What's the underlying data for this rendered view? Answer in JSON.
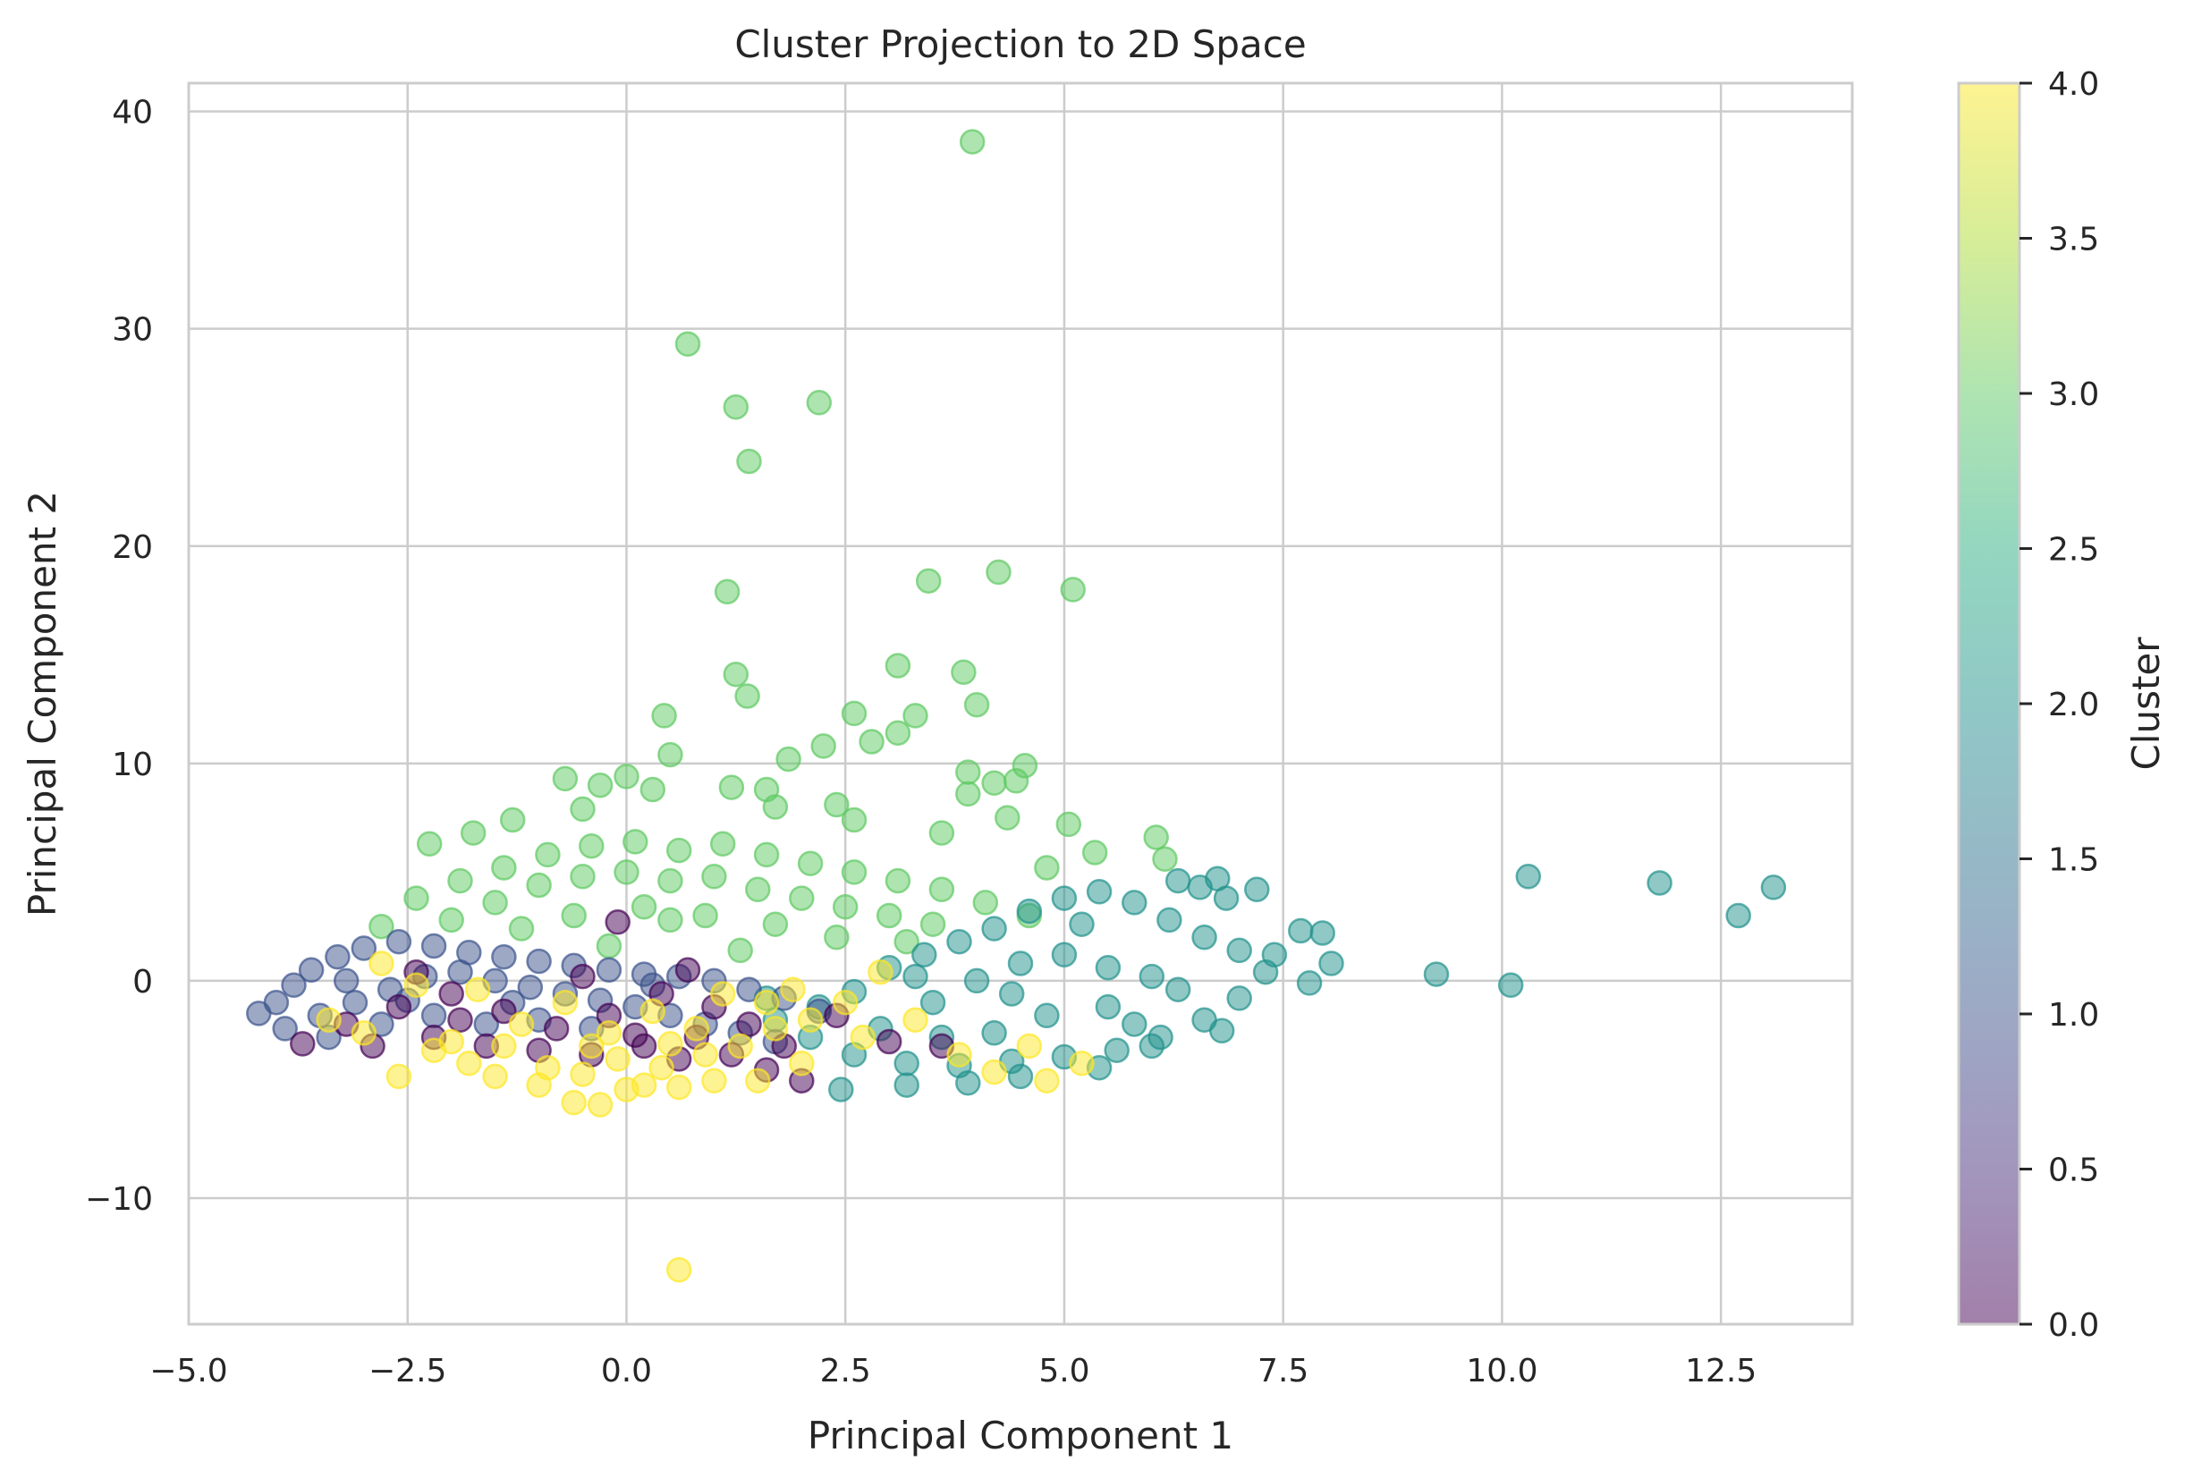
{
  "chart_data": {
    "type": "scatter",
    "title": "Cluster Projection to 2D Space",
    "xlabel": "Principal Component 1",
    "ylabel": "Principal Component 2",
    "xlim": [
      -5.0,
      14.0
    ],
    "ylim": [
      -15.8,
      41.3
    ],
    "x_ticks": [
      -5.0,
      -2.5,
      0.0,
      2.5,
      5.0,
      7.5,
      10.0,
      12.5
    ],
    "x_tick_labels": [
      "−5.0",
      "−2.5",
      "0.0",
      "2.5",
      "5.0",
      "7.5",
      "10.0",
      "12.5"
    ],
    "y_ticks": [
      -10,
      0,
      10,
      20,
      30,
      40
    ],
    "y_tick_labels": [
      "−10",
      "0",
      "10",
      "20",
      "30",
      "40"
    ],
    "grid": true,
    "colormap": "viridis",
    "colors": [
      "#440154",
      "#3b528b",
      "#21918c",
      "#5ec962",
      "#fde725"
    ],
    "marker_alpha": 0.5,
    "colorbar": {
      "label": "Cluster",
      "range": [
        0.0,
        4.0
      ],
      "ticks": [
        0.0,
        0.5,
        1.0,
        1.5,
        2.0,
        2.5,
        3.0,
        3.5,
        4.0
      ],
      "tick_labels": [
        "0.0",
        "0.5",
        "1.0",
        "1.5",
        "2.0",
        "2.5",
        "3.0",
        "3.5",
        "4.0"
      ]
    },
    "series": [
      {
        "cluster": 3,
        "points": [
          [
            3.95,
            38.6
          ],
          [
            0.7,
            29.3
          ],
          [
            1.25,
            26.4
          ],
          [
            2.2,
            26.6
          ],
          [
            1.4,
            23.9
          ],
          [
            1.15,
            17.9
          ],
          [
            3.45,
            18.4
          ],
          [
            4.25,
            18.8
          ],
          [
            5.1,
            18.0
          ],
          [
            1.25,
            14.1
          ],
          [
            1.38,
            13.1
          ],
          [
            3.1,
            14.5
          ],
          [
            3.85,
            14.2
          ],
          [
            4.0,
            12.7
          ],
          [
            0.43,
            12.2
          ],
          [
            2.6,
            12.3
          ],
          [
            3.3,
            12.2
          ],
          [
            2.25,
            10.8
          ],
          [
            2.8,
            11.0
          ],
          [
            3.1,
            11.4
          ],
          [
            0.5,
            10.4
          ],
          [
            1.85,
            10.2
          ],
          [
            3.9,
            9.6
          ],
          [
            4.55,
            9.9
          ],
          [
            1.2,
            8.9
          ],
          [
            1.6,
            8.8
          ],
          [
            2.4,
            8.1
          ],
          [
            3.9,
            8.6
          ],
          [
            4.2,
            9.1
          ],
          [
            4.45,
            9.2
          ],
          [
            5.05,
            7.2
          ],
          [
            6.05,
            6.6
          ],
          [
            6.15,
            5.6
          ],
          [
            5.35,
            5.9
          ],
          [
            4.35,
            7.5
          ],
          [
            -0.7,
            9.3
          ],
          [
            -0.3,
            9.0
          ],
          [
            0.0,
            9.4
          ],
          [
            -2.25,
            6.3
          ],
          [
            -1.75,
            6.8
          ],
          [
            -1.3,
            7.4
          ],
          [
            -0.5,
            7.9
          ],
          [
            0.3,
            8.8
          ],
          [
            1.7,
            8.0
          ],
          [
            2.6,
            7.4
          ],
          [
            3.6,
            6.8
          ],
          [
            4.8,
            5.2
          ],
          [
            -2.8,
            2.5
          ],
          [
            -2.4,
            3.8
          ],
          [
            -1.9,
            4.6
          ],
          [
            -1.4,
            5.2
          ],
          [
            -0.9,
            5.8
          ],
          [
            -0.4,
            6.2
          ],
          [
            0.1,
            6.4
          ],
          [
            0.6,
            6.0
          ],
          [
            1.1,
            6.3
          ],
          [
            1.6,
            5.8
          ],
          [
            2.1,
            5.4
          ],
          [
            2.6,
            5.0
          ],
          [
            3.1,
            4.6
          ],
          [
            3.6,
            4.2
          ],
          [
            4.1,
            3.6
          ],
          [
            4.6,
            3.0
          ],
          [
            -2.0,
            2.8
          ],
          [
            -1.5,
            3.6
          ],
          [
            -1.0,
            4.4
          ],
          [
            -0.5,
            4.8
          ],
          [
            0.0,
            5.0
          ],
          [
            0.5,
            4.6
          ],
          [
            1.0,
            4.8
          ],
          [
            1.5,
            4.2
          ],
          [
            2.0,
            3.8
          ],
          [
            2.5,
            3.4
          ],
          [
            3.0,
            3.0
          ],
          [
            3.5,
            2.6
          ],
          [
            -1.2,
            2.4
          ],
          [
            -0.6,
            3.0
          ],
          [
            0.2,
            3.4
          ],
          [
            0.9,
            3.0
          ],
          [
            1.7,
            2.6
          ],
          [
            2.4,
            2.0
          ],
          [
            3.2,
            1.8
          ],
          [
            0.5,
            2.8
          ],
          [
            -0.2,
            1.6
          ],
          [
            1.3,
            1.4
          ]
        ]
      },
      {
        "cluster": 2,
        "points": [
          [
            10.3,
            4.8
          ],
          [
            11.8,
            4.5
          ],
          [
            12.7,
            3.0
          ],
          [
            13.1,
            4.3
          ],
          [
            9.25,
            0.3
          ],
          [
            10.1,
            -0.2
          ],
          [
            7.8,
            -0.1
          ],
          [
            8.05,
            0.8
          ],
          [
            7.95,
            2.2
          ],
          [
            7.7,
            2.3
          ],
          [
            7.4,
            1.2
          ],
          [
            7.2,
            4.2
          ],
          [
            6.75,
            4.7
          ],
          [
            6.85,
            3.8
          ],
          [
            6.55,
            4.3
          ],
          [
            6.3,
            4.6
          ],
          [
            6.8,
            -2.3
          ],
          [
            2.45,
            -5.0
          ],
          [
            3.2,
            -4.8
          ],
          [
            3.9,
            -4.7
          ],
          [
            4.5,
            -4.4
          ],
          [
            5.4,
            -4.0
          ],
          [
            6.0,
            -3.0
          ],
          [
            2.6,
            -0.5
          ],
          [
            3.0,
            0.6
          ],
          [
            3.4,
            1.2
          ],
          [
            3.8,
            1.8
          ],
          [
            4.2,
            2.4
          ],
          [
            4.6,
            3.2
          ],
          [
            5.0,
            3.8
          ],
          [
            5.4,
            4.1
          ],
          [
            5.8,
            3.6
          ],
          [
            6.2,
            2.8
          ],
          [
            6.6,
            2.0
          ],
          [
            7.0,
            1.4
          ],
          [
            7.3,
            0.4
          ],
          [
            7.0,
            -0.8
          ],
          [
            6.6,
            -1.8
          ],
          [
            6.1,
            -2.6
          ],
          [
            5.6,
            -3.2
          ],
          [
            5.0,
            -3.5
          ],
          [
            4.4,
            -3.7
          ],
          [
            3.8,
            -3.9
          ],
          [
            3.2,
            -3.8
          ],
          [
            2.6,
            -3.4
          ],
          [
            2.1,
            -2.6
          ],
          [
            1.7,
            -1.8
          ],
          [
            1.6,
            -0.8
          ],
          [
            3.5,
            -1.0
          ],
          [
            4.0,
            0.0
          ],
          [
            4.5,
            0.8
          ],
          [
            5.0,
            1.2
          ],
          [
            5.5,
            0.6
          ],
          [
            6.0,
            0.2
          ],
          [
            4.8,
            -1.6
          ],
          [
            5.5,
            -1.2
          ],
          [
            4.2,
            -2.4
          ],
          [
            3.6,
            -2.6
          ],
          [
            6.3,
            -0.4
          ],
          [
            5.2,
            2.6
          ],
          [
            2.2,
            -1.2
          ],
          [
            2.9,
            -2.2
          ],
          [
            3.3,
            0.2
          ],
          [
            4.4,
            -0.6
          ],
          [
            5.8,
            -2.0
          ]
        ]
      },
      {
        "cluster": 1,
        "points": [
          [
            -4.2,
            -1.5
          ],
          [
            -4.0,
            -1.0
          ],
          [
            -3.8,
            -0.2
          ],
          [
            -3.6,
            0.5
          ],
          [
            -3.3,
            1.1
          ],
          [
            -3.0,
            1.5
          ],
          [
            -2.6,
            1.8
          ],
          [
            -2.2,
            1.6
          ],
          [
            -1.8,
            1.3
          ],
          [
            -1.4,
            1.1
          ],
          [
            -1.0,
            0.9
          ],
          [
            -0.6,
            0.7
          ],
          [
            -0.2,
            0.5
          ],
          [
            0.2,
            0.3
          ],
          [
            0.6,
            0.2
          ],
          [
            1.0,
            0.0
          ],
          [
            1.4,
            -0.4
          ],
          [
            1.8,
            -0.8
          ],
          [
            2.2,
            -1.4
          ],
          [
            -3.9,
            -2.2
          ],
          [
            -3.5,
            -1.6
          ],
          [
            -3.1,
            -1.0
          ],
          [
            -2.7,
            -0.4
          ],
          [
            -2.3,
            0.2
          ],
          [
            -1.9,
            0.4
          ],
          [
            -1.5,
            0.0
          ],
          [
            -1.1,
            -0.3
          ],
          [
            -0.7,
            -0.6
          ],
          [
            -0.3,
            -0.9
          ],
          [
            0.1,
            -1.2
          ],
          [
            0.5,
            -1.6
          ],
          [
            0.9,
            -2.0
          ],
          [
            1.3,
            -2.4
          ],
          [
            1.7,
            -2.8
          ],
          [
            -3.4,
            -2.6
          ],
          [
            -2.8,
            -2.0
          ],
          [
            -2.2,
            -1.6
          ],
          [
            -1.6,
            -2.0
          ],
          [
            -1.0,
            -1.8
          ],
          [
            -0.4,
            -2.2
          ],
          [
            -2.5,
            -0.9
          ],
          [
            -3.2,
            0.0
          ],
          [
            -1.3,
            -1.0
          ],
          [
            0.3,
            -0.2
          ]
        ]
      },
      {
        "cluster": 0,
        "points": [
          [
            -3.7,
            -2.9
          ],
          [
            -3.2,
            -2.0
          ],
          [
            -2.6,
            -1.2
          ],
          [
            -2.0,
            -0.6
          ],
          [
            -1.4,
            -1.4
          ],
          [
            -0.8,
            -2.2
          ],
          [
            -0.2,
            -1.6
          ],
          [
            0.4,
            -0.6
          ],
          [
            0.8,
            -2.6
          ],
          [
            1.2,
            -3.4
          ],
          [
            1.6,
            -4.1
          ],
          [
            2.0,
            -4.6
          ],
          [
            -2.9,
            -3.0
          ],
          [
            -2.2,
            -2.6
          ],
          [
            -1.6,
            -3.0
          ],
          [
            -1.0,
            -3.2
          ],
          [
            -0.4,
            -3.4
          ],
          [
            0.2,
            -3.0
          ],
          [
            0.6,
            -3.6
          ],
          [
            1.4,
            -2.0
          ],
          [
            -0.5,
            0.2
          ],
          [
            0.1,
            -2.5
          ],
          [
            1.0,
            -1.2
          ],
          [
            1.8,
            -3.0
          ],
          [
            3.6,
            -3.0
          ],
          [
            -1.9,
            -1.8
          ],
          [
            -2.4,
            0.4
          ],
          [
            0.7,
            0.5
          ],
          [
            -0.1,
            2.7
          ],
          [
            2.4,
            -1.6
          ],
          [
            3.0,
            -2.8
          ]
        ]
      },
      {
        "cluster": 4,
        "points": [
          [
            0.6,
            -13.3
          ],
          [
            -0.6,
            -5.6
          ],
          [
            -0.3,
            -5.7
          ],
          [
            0.0,
            -5.0
          ],
          [
            0.6,
            -4.9
          ],
          [
            1.0,
            -4.6
          ],
          [
            -1.0,
            -4.8
          ],
          [
            -2.6,
            -4.4
          ],
          [
            -1.8,
            -3.8
          ],
          [
            -2.2,
            -3.2
          ],
          [
            -1.4,
            -3.0
          ],
          [
            -0.9,
            -4.0
          ],
          [
            -0.5,
            -4.3
          ],
          [
            -0.1,
            -3.6
          ],
          [
            0.4,
            -4.0
          ],
          [
            0.9,
            -3.4
          ],
          [
            1.3,
            -3.0
          ],
          [
            1.7,
            -2.2
          ],
          [
            2.1,
            -1.8
          ],
          [
            2.5,
            -1.0
          ],
          [
            2.9,
            0.4
          ],
          [
            3.3,
            -1.8
          ],
          [
            2.0,
            -3.8
          ],
          [
            1.5,
            -4.6
          ],
          [
            4.2,
            -4.2
          ],
          [
            4.8,
            -4.6
          ],
          [
            5.2,
            -3.8
          ],
          [
            3.8,
            -3.4
          ],
          [
            -3.0,
            -2.4
          ],
          [
            -2.8,
            0.8
          ],
          [
            -2.4,
            -0.2
          ],
          [
            -1.2,
            -2.0
          ],
          [
            -0.7,
            -1.0
          ],
          [
            -0.2,
            -2.4
          ],
          [
            0.3,
            -1.4
          ],
          [
            0.8,
            -2.2
          ],
          [
            1.1,
            -0.6
          ],
          [
            1.6,
            -1.0
          ],
          [
            -3.4,
            -1.8
          ],
          [
            -1.7,
            -0.4
          ],
          [
            -2.0,
            -2.8
          ],
          [
            -0.4,
            -3.0
          ],
          [
            0.5,
            -2.9
          ],
          [
            1.9,
            -0.4
          ],
          [
            2.7,
            -2.6
          ],
          [
            -1.5,
            -4.4
          ],
          [
            0.2,
            -4.8
          ],
          [
            4.6,
            -3.0
          ]
        ]
      }
    ]
  }
}
